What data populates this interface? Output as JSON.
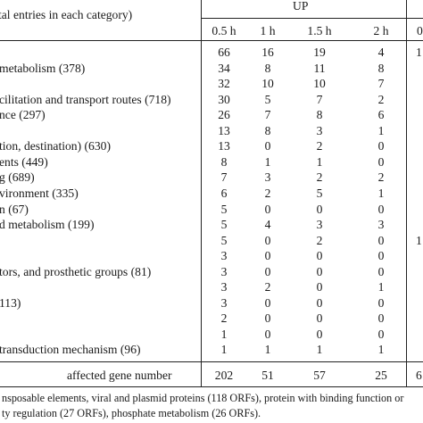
{
  "header": {
    "category_title": "tal entries in each category)",
    "group_label": "UP",
    "timepoints": [
      "0.5 h",
      "1 h",
      "1.5 h",
      "2 h"
    ],
    "right_edge_text": "0"
  },
  "rows": [
    {
      "label": "",
      "values": [
        "66",
        "16",
        "19",
        "4"
      ],
      "right": "1"
    },
    {
      "label": "metabolism (378)",
      "values": [
        "34",
        "8",
        "11",
        "8"
      ],
      "right": ""
    },
    {
      "label": "",
      "values": [
        "32",
        "10",
        "10",
        "7"
      ],
      "right": ""
    },
    {
      "label": "cilitation and transport routes (718)",
      "values": [
        "30",
        "5",
        "7",
        "2"
      ],
      "right": ""
    },
    {
      "label": "nce (297)",
      "values": [
        "26",
        "7",
        "8",
        "6"
      ],
      "right": ""
    },
    {
      "label": "",
      "values": [
        "13",
        "8",
        "3",
        "1"
      ],
      "right": ""
    },
    {
      "label": "tion, destination) (630)",
      "values": [
        "13",
        "0",
        "2",
        "0"
      ],
      "right": ""
    },
    {
      "label": "ents (449)",
      "values": [
        "8",
        "1",
        "1",
        "0"
      ],
      "right": ""
    },
    {
      "label": "g (689)",
      "values": [
        "7",
        "3",
        "2",
        "2"
      ],
      "right": ""
    },
    {
      "label": "vironment (335)",
      "values": [
        "6",
        "2",
        "5",
        "1"
      ],
      "right": ""
    },
    {
      "label": "n (67)",
      "values": [
        "5",
        "0",
        "0",
        "0"
      ],
      "right": ""
    },
    {
      "label": "d metabolism (199)",
      "values": [
        "5",
        "4",
        "3",
        "3"
      ],
      "right": ""
    },
    {
      "label": "",
      "values": [
        "5",
        "0",
        "2",
        "0"
      ],
      "right": "1"
    },
    {
      "label": "",
      "values": [
        "3",
        "0",
        "0",
        "0"
      ],
      "right": ""
    },
    {
      "label": "tors, and prosthetic groups (81)",
      "values": [
        "3",
        "0",
        "0",
        "0"
      ],
      "right": ""
    },
    {
      "label": "",
      "values": [
        "3",
        "2",
        "0",
        "1"
      ],
      "right": ""
    },
    {
      "label": "113)",
      "values": [
        "3",
        "0",
        "0",
        "0"
      ],
      "right": ""
    },
    {
      "label": "",
      "values": [
        "2",
        "0",
        "0",
        "0"
      ],
      "right": ""
    },
    {
      "label": "",
      "values": [
        "1",
        "0",
        "0",
        "0"
      ],
      "right": ""
    },
    {
      "label": "transduction mechanism (96)",
      "values": [
        "1",
        "1",
        "1",
        "1"
      ],
      "right": ""
    }
  ],
  "total_row": {
    "label": "affected gene number",
    "values": [
      "202",
      "51",
      "57",
      "25"
    ],
    "right": "6"
  },
  "footnote": {
    "line1": "nsposable elements, viral and plasmid proteins (118 ORFs), protein with binding function or",
    "line2": "ty regulation (27 ORFs), phosphate metabolism (26 ORFs)."
  }
}
